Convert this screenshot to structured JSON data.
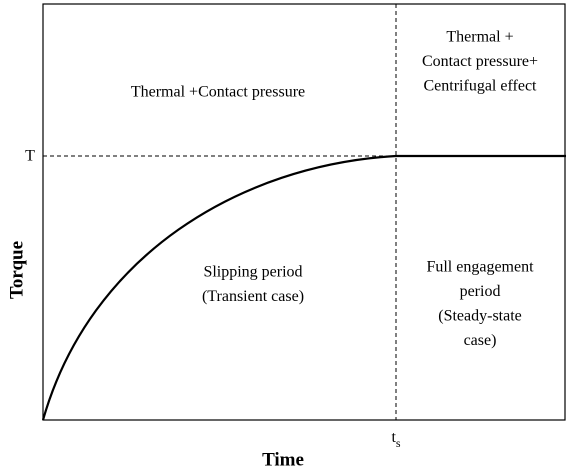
{
  "axes": {
    "x_label": "Time",
    "y_label": "Torque",
    "y_marker": "T",
    "x_marker": {
      "base": "t",
      "subscript": "s"
    }
  },
  "regions": [
    {
      "lines": [
        "Thermal +Contact pressure"
      ]
    },
    {
      "lines": [
        "Thermal +",
        "Contact pressure+",
        "Centrifugal effect"
      ]
    },
    {
      "lines": [
        "Slipping period",
        "(Transient case)"
      ]
    },
    {
      "lines": [
        "Full engagement",
        "period",
        "(Steady-state",
        "case)"
      ]
    }
  ]
}
